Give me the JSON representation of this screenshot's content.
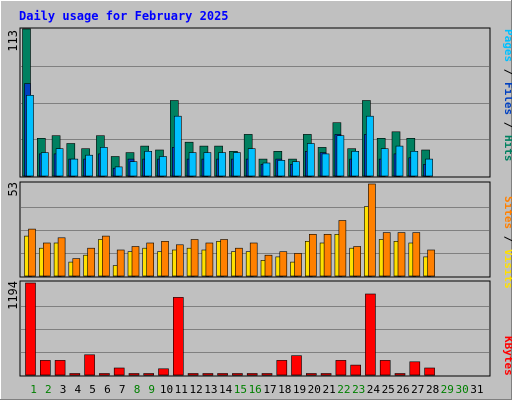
{
  "title": "Daily usage for February 2025",
  "panels": {
    "top": {
      "ymax_label": "113"
    },
    "middle": {
      "ymax_label": "53"
    },
    "bottom": {
      "ymax_label": "1194"
    }
  },
  "legends": {
    "top": [
      {
        "text": "Pages",
        "color": "#00c0ff"
      },
      {
        "text": " / ",
        "color": "#000000"
      },
      {
        "text": "Files",
        "color": "#0040c0"
      },
      {
        "text": " / ",
        "color": "#000000"
      },
      {
        "text": "Hits",
        "color": "#008060"
      }
    ],
    "middle": [
      {
        "text": "Sites",
        "color": "#ff8000"
      },
      {
        "text": " / ",
        "color": "#000000"
      },
      {
        "text": "Visits",
        "color": "#ffe000"
      }
    ],
    "bottom": [
      {
        "text": "KBytes",
        "color": "#ff0000"
      }
    ]
  },
  "colors": {
    "hits": "#008060",
    "files": "#0040c0",
    "pages": "#00c0ff",
    "visits": "#ffe000",
    "sites": "#ff8000",
    "kbytes": "#ff0000",
    "weekday_label": "#000000",
    "weekend_label": "#008000"
  },
  "chart_data": {
    "type": "bar",
    "title": "Daily usage for February 2025",
    "categories": [
      "1",
      "2",
      "3",
      "4",
      "5",
      "6",
      "7",
      "8",
      "9",
      "10",
      "11",
      "12",
      "13",
      "14",
      "15",
      "16",
      "17",
      "18",
      "19",
      "20",
      "21",
      "22",
      "23",
      "24",
      "25",
      "26",
      "27",
      "28",
      "29",
      "30",
      "31"
    ],
    "weekend_days": [
      "1",
      "2",
      "8",
      "9",
      "15",
      "16",
      "22",
      "23",
      "29",
      "30"
    ],
    "panels": [
      {
        "name": "top",
        "ylim": [
          0,
          113
        ],
        "series": [
          {
            "name": "Hits",
            "values": [
              113,
              29,
              31,
              25,
              21,
              31,
              15,
              18,
              23,
              20,
              58,
              26,
              23,
              23,
              19,
              32,
              13,
              19,
              13,
              32,
              22,
              41,
              21,
              58,
              29,
              34,
              29,
              20,
              0,
              0,
              0
            ]
          },
          {
            "name": "Files",
            "values": [
              71,
              17,
              17,
              13,
              13,
              17,
              6,
              13,
              13,
              13,
              22,
              13,
              13,
              13,
              13,
              13,
              9,
              13,
              9,
              19,
              18,
              32,
              13,
              32,
              13,
              17,
              14,
              9,
              0,
              0,
              0
            ]
          },
          {
            "name": "Pages",
            "values": [
              62,
              18,
              21,
              13,
              16,
              22,
              7,
              11,
              19,
              15,
              46,
              18,
              18,
              18,
              18,
              21,
              10,
              12,
              11,
              25,
              17,
              31,
              19,
              46,
              21,
              23,
              19,
              13,
              0,
              0,
              0
            ]
          }
        ]
      },
      {
        "name": "middle",
        "ylim": [
          0,
          53
        ],
        "series": [
          {
            "name": "Visits",
            "values": [
              23,
              16,
              19,
              8,
              12,
              21,
              6,
              14,
              16,
              14,
              15,
              16,
              15,
              20,
              14,
              14,
              9,
              11,
              8,
              20,
              19,
              24,
              16,
              40,
              21,
              20,
              19,
              11,
              0,
              0,
              0
            ]
          },
          {
            "name": "Sites",
            "values": [
              27,
              19,
              22,
              10,
              16,
              23,
              15,
              17,
              19,
              20,
              18,
              21,
              19,
              21,
              16,
              19,
              12,
              14,
              13,
              24,
              24,
              32,
              17,
              53,
              25,
              25,
              25,
              15,
              0,
              0,
              0
            ]
          }
        ]
      },
      {
        "name": "bottom",
        "ylim": [
          0,
          1194
        ],
        "series": [
          {
            "name": "KBytes",
            "values": [
              1194,
              189,
              189,
              20,
              262,
              20,
              91,
              20,
              20,
              80,
              1007,
              20,
              20,
              20,
              20,
              20,
              20,
              189,
              250,
              20,
              20,
              189,
              129,
              1051,
              189,
              20,
              171,
              91,
              0,
              0,
              0
            ]
          }
        ]
      }
    ]
  }
}
